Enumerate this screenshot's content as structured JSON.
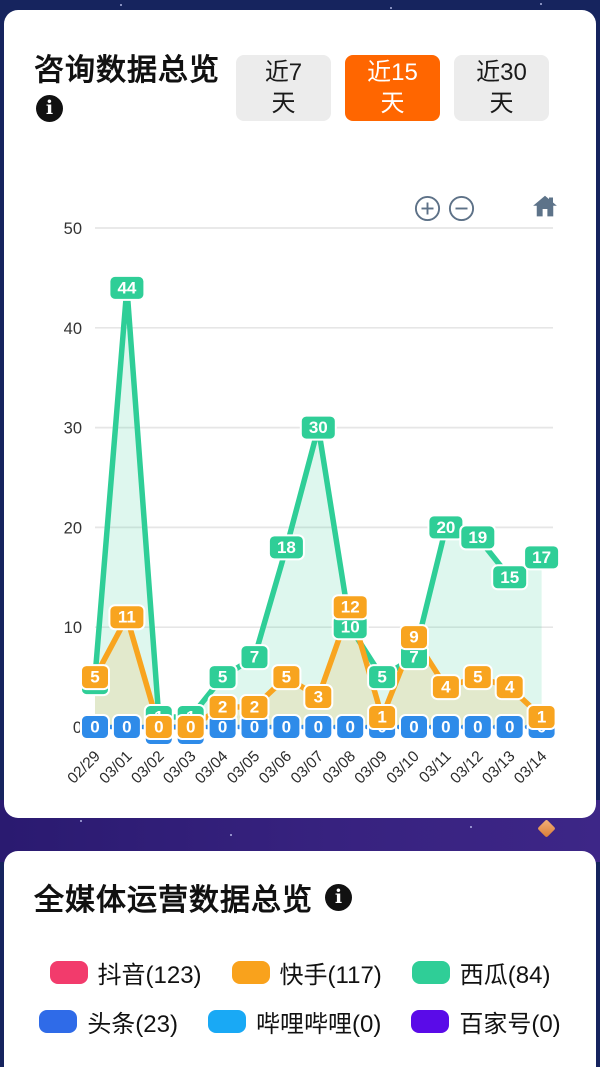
{
  "theme": {
    "accent_orange": "#ff6600",
    "top_background": "#16245e",
    "strip_background": "#32207b",
    "card_background": "#ffffff"
  },
  "card1": {
    "title": "咨询数据总览",
    "info_icon": "i",
    "tabs": [
      {
        "label": "近7天",
        "active": false
      },
      {
        "label": "近15天",
        "active": true
      },
      {
        "label": "近30天",
        "active": false
      }
    ],
    "controls": {
      "zoom_in": "plus-circle",
      "zoom_out": "minus-circle",
      "reset": "home"
    }
  },
  "chart_data": {
    "type": "line",
    "x": [
      "02/29",
      "03/01",
      "03/02",
      "03/03",
      "03/04",
      "03/05",
      "03/06",
      "03/07",
      "03/08",
      "03/09",
      "03/10",
      "03/11",
      "03/12",
      "03/13",
      "03/14"
    ],
    "series": [
      {
        "name": "西瓜",
        "color": "#2fce97",
        "area": true,
        "dashed": false,
        "values": [
          5,
          44,
          1,
          1,
          5,
          7,
          18,
          30,
          10,
          5,
          7,
          20,
          19,
          15,
          17
        ]
      },
      {
        "name": "快手",
        "color": "#f8a41f",
        "area": true,
        "dashed": false,
        "values": [
          5,
          11,
          0,
          0,
          2,
          2,
          5,
          3,
          12,
          1,
          9,
          4,
          5,
          4,
          1
        ]
      },
      {
        "name": "头条",
        "color": "#2e8be9",
        "area": false,
        "dashed": true,
        "values": [
          0,
          0,
          0,
          0,
          0,
          0,
          0,
          0,
          0,
          0,
          0,
          0,
          0,
          0,
          0
        ]
      }
    ],
    "ylim": [
      0,
      50
    ],
    "yticks": [
      0,
      10,
      20,
      30,
      40,
      50
    ],
    "grid": true,
    "point_labels": true,
    "legend_position": "none"
  },
  "card2": {
    "title": "全媒体运营数据总览",
    "info_icon": "i",
    "legend": [
      {
        "label": "抖音(123)",
        "color": "#f23b6c"
      },
      {
        "label": "快手(117)",
        "color": "#f9a21c"
      },
      {
        "label": "西瓜(84)",
        "color": "#2fce97"
      },
      {
        "label": "头条(23)",
        "color": "#2f6be8"
      },
      {
        "label": "哔哩哔哩(0)",
        "color": "#19a9f5"
      },
      {
        "label": "百家号(0)",
        "color": "#5a0be8"
      }
    ]
  }
}
